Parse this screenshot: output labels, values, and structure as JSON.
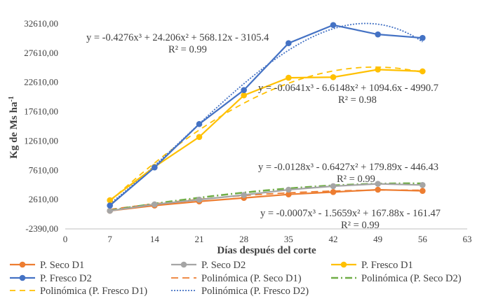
{
  "chart_data": {
    "type": "line",
    "title": "",
    "xlabel": "Días después del corte",
    "ylabel": "Kg de Ms ha-1",
    "ylabel_main": "Kg de Ms ha",
    "ylabel_sup": "-1",
    "xlim": [
      0,
      63
    ],
    "ylim": [
      -2390,
      32610
    ],
    "x_ticks": [
      "0",
      "7",
      "14",
      "21",
      "28",
      "35",
      "42",
      "49",
      "56",
      "63"
    ],
    "y_ticks": [
      "-2390,00",
      "2610,00",
      "7610,00",
      "12610,00",
      "17610,00",
      "22610,00",
      "27610,00",
      "32610,00"
    ],
    "x": [
      7,
      14,
      21,
      28,
      35,
      42,
      49,
      56
    ],
    "grid": false,
    "legend_position": "bottom",
    "series": [
      {
        "name": "P. Seco D1",
        "color": "#ED7D31",
        "values": [
          700,
          1600,
          2300,
          2900,
          3500,
          3900,
          4300,
          4100
        ]
      },
      {
        "name": "P. Seco D2",
        "color": "#A5A5A5",
        "values": [
          700,
          1800,
          2600,
          3400,
          4300,
          4900,
          5300,
          5100
        ]
      },
      {
        "name": "P. Fresco D1",
        "color": "#FFC000",
        "values": [
          2500,
          8200,
          13300,
          20400,
          23400,
          23500,
          24800,
          24500
        ]
      },
      {
        "name": "P. Fresco D2",
        "color": "#4472C4",
        "values": [
          1600,
          8100,
          15500,
          21300,
          29300,
          32400,
          30800,
          30200
        ]
      }
    ],
    "trendlines": [
      {
        "name": "Polinómica (P. Seco D1)",
        "color": "#ED7D31",
        "dash": "10,6",
        "coeffs": [
          -0.0007,
          -1.5659,
          167.88,
          -161.47
        ]
      },
      {
        "name": "Polinómica (P. Seco D2)",
        "color": "#70AD47",
        "dash": "10,4,2,4",
        "coeffs": [
          -0.0128,
          -0.6427,
          179.89,
          -446.43
        ]
      },
      {
        "name": "Polinómica (P. Fresco D1)",
        "color": "#FFC000",
        "dash": "8,6",
        "coeffs": [
          -0.0641,
          -6.6148,
          1094.6,
          -4990.7
        ]
      },
      {
        "name": "Polinómica (P. Fresco D2)",
        "color": "#4472C4",
        "dash": "2,2",
        "coeffs": [
          -0.4276,
          24.206,
          568.12,
          -3105.4
        ]
      }
    ],
    "annotations": [
      {
        "eq": "y = -0.4276x³ + 24.206x² + 568.12x - 3105.4",
        "r2": "R² = 0.99"
      },
      {
        "eq": "y = -0.0641x³ - 6.6148x² + 1094.6x - 4990.7",
        "r2": "R² = 0.98"
      },
      {
        "eq": "y = -0.0128x³ - 0.6427x² + 179.89x - 446.43",
        "r2": "R² = 0.99"
      },
      {
        "eq": "y = -0.0007x³ - 1.5659x² + 167.88x - 161.47",
        "r2": "R² = 0.99"
      }
    ]
  }
}
